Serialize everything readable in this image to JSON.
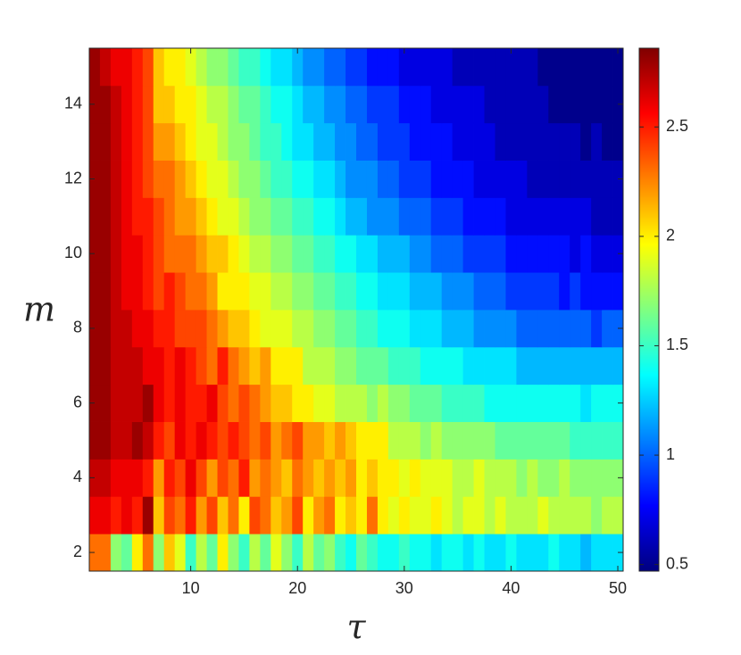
{
  "chart_data": {
    "type": "heatmap",
    "xlabel": "τ",
    "ylabel": "m",
    "colormap": "jet",
    "x": [
      1,
      2,
      3,
      4,
      5,
      6,
      7,
      8,
      9,
      10,
      11,
      12,
      13,
      14,
      15,
      16,
      17,
      18,
      19,
      20,
      21,
      22,
      23,
      24,
      25,
      26,
      27,
      28,
      29,
      30,
      31,
      32,
      33,
      34,
      35,
      36,
      37,
      38,
      39,
      40,
      41,
      42,
      43,
      44,
      45,
      46,
      47,
      48,
      49,
      50
    ],
    "y": [
      2,
      3,
      4,
      5,
      6,
      7,
      8,
      9,
      10,
      11,
      12,
      13,
      14,
      15
    ],
    "xlim": [
      0.5,
      50.5
    ],
    "xticks": [
      10,
      20,
      30,
      40,
      50
    ],
    "ylim": [
      1.5,
      15.5
    ],
    "yticks": [
      2,
      4,
      6,
      8,
      10,
      12,
      14
    ],
    "zlim": [
      0.47,
      2.86
    ],
    "zticks": [
      0.5,
      1,
      1.5,
      2,
      2.5
    ],
    "z": [
      [
        2.3,
        2.3,
        1.7,
        1.6,
        2.0,
        2.3,
        1.7,
        2.1,
        1.9,
        1.5,
        1.8,
        1.6,
        2.0,
        1.7,
        1.5,
        1.8,
        1.6,
        1.9,
        1.7,
        1.5,
        1.8,
        1.6,
        1.7,
        1.5,
        1.4,
        1.6,
        1.5,
        1.4,
        1.4,
        1.5,
        1.4,
        1.4,
        1.3,
        1.4,
        1.4,
        1.3,
        1.4,
        1.3,
        1.3,
        1.4,
        1.3,
        1.3,
        1.3,
        1.4,
        1.3,
        1.3,
        1.2,
        1.3,
        1.3,
        1.3
      ],
      [
        2.6,
        2.6,
        2.5,
        2.6,
        2.5,
        2.8,
        2.1,
        2.4,
        2.3,
        2.5,
        2.2,
        2.4,
        2.1,
        2.3,
        2.0,
        2.4,
        2.3,
        2.1,
        2.2,
        2.4,
        2.0,
        2.2,
        2.3,
        2.0,
        2.1,
        2.0,
        2.3,
        2.0,
        1.9,
        2.0,
        1.9,
        1.9,
        2.0,
        1.9,
        1.8,
        1.9,
        1.9,
        1.8,
        1.9,
        1.8,
        1.8,
        1.8,
        1.9,
        1.8,
        1.8,
        1.8,
        1.8,
        1.7,
        1.8,
        1.8
      ],
      [
        2.7,
        2.7,
        2.6,
        2.6,
        2.6,
        2.5,
        2.2,
        2.5,
        2.4,
        2.6,
        2.4,
        2.2,
        2.4,
        2.3,
        2.5,
        2.2,
        2.3,
        2.2,
        2.1,
        2.3,
        2.2,
        2.1,
        2.2,
        2.1,
        2.2,
        2.0,
        2.1,
        2.0,
        2.0,
        1.9,
        2.0,
        1.9,
        1.9,
        1.9,
        1.8,
        1.8,
        1.9,
        1.8,
        1.8,
        1.8,
        1.7,
        1.8,
        1.7,
        1.7,
        1.8,
        1.7,
        1.7,
        1.7,
        1.7,
        1.7
      ],
      [
        2.8,
        2.8,
        2.7,
        2.7,
        2.8,
        2.7,
        2.5,
        2.4,
        2.6,
        2.5,
        2.6,
        2.5,
        2.4,
        2.5,
        2.4,
        2.3,
        2.4,
        2.2,
        2.3,
        2.4,
        2.2,
        2.2,
        2.1,
        2.2,
        2.1,
        2.0,
        2.0,
        2.0,
        1.8,
        1.8,
        1.8,
        1.7,
        1.8,
        1.7,
        1.7,
        1.7,
        1.7,
        1.7,
        1.6,
        1.6,
        1.6,
        1.6,
        1.6,
        1.6,
        1.6,
        1.5,
        1.5,
        1.5,
        1.5,
        1.5
      ],
      [
        2.8,
        2.8,
        2.7,
        2.7,
        2.7,
        2.8,
        2.6,
        2.5,
        2.6,
        2.5,
        2.5,
        2.6,
        2.4,
        2.3,
        2.4,
        2.3,
        2.2,
        2.1,
        2.1,
        2.0,
        2.0,
        1.9,
        1.9,
        1.8,
        1.8,
        1.8,
        1.7,
        1.8,
        1.7,
        1.7,
        1.6,
        1.6,
        1.6,
        1.5,
        1.5,
        1.5,
        1.5,
        1.4,
        1.4,
        1.4,
        1.4,
        1.4,
        1.4,
        1.4,
        1.4,
        1.4,
        1.3,
        1.4,
        1.4,
        1.4
      ],
      [
        2.8,
        2.8,
        2.7,
        2.7,
        2.7,
        2.6,
        2.6,
        2.5,
        2.6,
        2.5,
        2.4,
        2.3,
        2.5,
        2.3,
        2.2,
        2.1,
        2.2,
        2.0,
        2.0,
        2.0,
        1.8,
        1.8,
        1.8,
        1.7,
        1.7,
        1.6,
        1.6,
        1.6,
        1.5,
        1.5,
        1.5,
        1.4,
        1.4,
        1.4,
        1.4,
        1.3,
        1.3,
        1.3,
        1.3,
        1.3,
        1.2,
        1.2,
        1.2,
        1.2,
        1.2,
        1.2,
        1.2,
        1.2,
        1.2,
        1.2
      ],
      [
        2.8,
        2.8,
        2.7,
        2.7,
        2.6,
        2.6,
        2.5,
        2.5,
        2.4,
        2.4,
        2.4,
        2.3,
        2.2,
        2.1,
        2.1,
        2.0,
        1.9,
        1.9,
        1.9,
        1.8,
        1.8,
        1.7,
        1.7,
        1.6,
        1.6,
        1.5,
        1.5,
        1.4,
        1.4,
        1.4,
        1.3,
        1.3,
        1.3,
        1.2,
        1.2,
        1.2,
        1.1,
        1.1,
        1.1,
        1.1,
        1.0,
        1.0,
        1.0,
        1.0,
        1.0,
        1.0,
        1.0,
        0.9,
        1.0,
        1.0
      ],
      [
        2.8,
        2.8,
        2.7,
        2.6,
        2.6,
        2.5,
        2.4,
        2.5,
        2.4,
        2.3,
        2.3,
        2.2,
        2.0,
        2.0,
        2.0,
        1.9,
        1.9,
        1.8,
        1.8,
        1.7,
        1.7,
        1.6,
        1.6,
        1.5,
        1.5,
        1.4,
        1.4,
        1.3,
        1.3,
        1.3,
        1.2,
        1.2,
        1.2,
        1.1,
        1.1,
        1.1,
        1.0,
        1.0,
        1.0,
        0.9,
        0.9,
        0.9,
        0.9,
        0.9,
        0.8,
        0.9,
        0.8,
        0.8,
        0.8,
        0.8
      ],
      [
        2.8,
        2.8,
        2.7,
        2.6,
        2.6,
        2.5,
        2.4,
        2.3,
        2.3,
        2.3,
        2.2,
        2.1,
        2.1,
        2.0,
        1.9,
        1.8,
        1.8,
        1.7,
        1.7,
        1.6,
        1.6,
        1.5,
        1.5,
        1.4,
        1.4,
        1.3,
        1.3,
        1.2,
        1.2,
        1.2,
        1.1,
        1.1,
        1.0,
        1.0,
        1.0,
        0.9,
        0.9,
        0.9,
        0.9,
        0.8,
        0.8,
        0.8,
        0.8,
        0.8,
        0.8,
        0.7,
        0.8,
        0.7,
        0.7,
        0.7
      ],
      [
        2.8,
        2.8,
        2.7,
        2.6,
        2.5,
        2.5,
        2.4,
        2.3,
        2.2,
        2.2,
        2.1,
        2.0,
        1.9,
        1.9,
        1.8,
        1.7,
        1.7,
        1.6,
        1.6,
        1.5,
        1.5,
        1.4,
        1.4,
        1.3,
        1.2,
        1.2,
        1.1,
        1.1,
        1.1,
        1.0,
        1.0,
        1.0,
        0.9,
        0.9,
        0.9,
        0.8,
        0.8,
        0.8,
        0.8,
        0.7,
        0.7,
        0.7,
        0.7,
        0.7,
        0.7,
        0.7,
        0.7,
        0.6,
        0.6,
        0.6
      ],
      [
        2.8,
        2.8,
        2.7,
        2.6,
        2.5,
        2.4,
        2.3,
        2.3,
        2.2,
        2.1,
        2.0,
        1.9,
        1.9,
        1.8,
        1.7,
        1.7,
        1.6,
        1.5,
        1.5,
        1.4,
        1.4,
        1.3,
        1.3,
        1.2,
        1.1,
        1.1,
        1.1,
        1.0,
        1.0,
        0.9,
        0.9,
        0.9,
        0.8,
        0.8,
        0.8,
        0.8,
        0.7,
        0.7,
        0.7,
        0.7,
        0.7,
        0.6,
        0.6,
        0.6,
        0.6,
        0.6,
        0.6,
        0.6,
        0.6,
        0.6
      ],
      [
        2.8,
        2.8,
        2.7,
        2.6,
        2.5,
        2.4,
        2.2,
        2.2,
        2.1,
        2.0,
        1.9,
        1.9,
        1.8,
        1.7,
        1.7,
        1.6,
        1.5,
        1.5,
        1.4,
        1.3,
        1.3,
        1.2,
        1.2,
        1.1,
        1.1,
        1.0,
        1.0,
        0.9,
        0.9,
        0.9,
        0.8,
        0.8,
        0.8,
        0.8,
        0.7,
        0.7,
        0.7,
        0.7,
        0.6,
        0.6,
        0.6,
        0.6,
        0.6,
        0.6,
        0.6,
        0.6,
        0.5,
        0.6,
        0.5,
        0.5
      ],
      [
        2.8,
        2.8,
        2.7,
        2.6,
        2.5,
        2.4,
        2.1,
        2.1,
        2.0,
        2.0,
        1.9,
        1.8,
        1.8,
        1.7,
        1.6,
        1.6,
        1.5,
        1.4,
        1.4,
        1.3,
        1.2,
        1.2,
        1.1,
        1.1,
        1.0,
        1.0,
        0.9,
        0.9,
        0.9,
        0.8,
        0.8,
        0.8,
        0.7,
        0.7,
        0.7,
        0.7,
        0.7,
        0.6,
        0.6,
        0.6,
        0.6,
        0.6,
        0.6,
        0.5,
        0.5,
        0.5,
        0.5,
        0.5,
        0.5,
        0.5
      ],
      [
        2.8,
        2.7,
        2.6,
        2.6,
        2.5,
        2.4,
        2.1,
        2.0,
        2.0,
        1.9,
        1.8,
        1.7,
        1.7,
        1.6,
        1.5,
        1.5,
        1.4,
        1.3,
        1.3,
        1.2,
        1.1,
        1.1,
        1.0,
        1.0,
        0.9,
        0.9,
        0.8,
        0.8,
        0.8,
        0.7,
        0.7,
        0.7,
        0.7,
        0.7,
        0.6,
        0.6,
        0.6,
        0.6,
        0.6,
        0.6,
        0.6,
        0.6,
        0.5,
        0.5,
        0.5,
        0.5,
        0.5,
        0.5,
        0.5,
        0.5
      ]
    ]
  }
}
